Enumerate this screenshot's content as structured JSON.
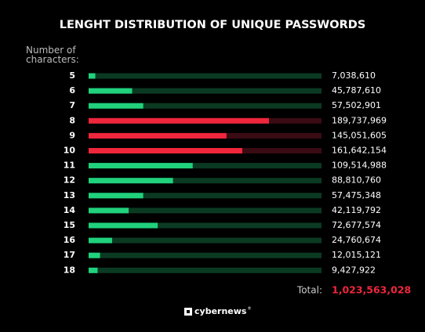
{
  "chart_data": {
    "type": "hbar",
    "title": "LENGHT DISTRIBUTION OF UNIQUE PASSWORDS",
    "axis_label": "Number of characters:",
    "categories": [
      "5",
      "6",
      "7",
      "8",
      "9",
      "10",
      "11",
      "12",
      "13",
      "14",
      "15",
      "16",
      "17",
      "18"
    ],
    "values": [
      7038610,
      45787610,
      57502901,
      189737969,
      145051605,
      161642154,
      109514988,
      88810760,
      57475348,
      42119792,
      72677574,
      24760674,
      12015121,
      9427922
    ],
    "value_labels": [
      "7,038,610",
      "45,787,610",
      "57,502,901",
      "189,737,969",
      "145,051,605",
      "161,642,154",
      "109,514,988",
      "88,810,760",
      "57,475,348",
      "42,119,792",
      "72,677,574",
      "24,760,674",
      "12,015,121",
      "9,427,922"
    ],
    "colors": [
      "#20d27c",
      "#20d27c",
      "#20d27c",
      "#f0263c",
      "#f0263c",
      "#f0263c",
      "#20d27c",
      "#20d27c",
      "#20d27c",
      "#20d27c",
      "#20d27c",
      "#20d27c",
      "#20d27c",
      "#20d27c"
    ],
    "track_colors": [
      "#0b3a22",
      "#0b3a22",
      "#0b3a22",
      "#3b0b14",
      "#3b0b14",
      "#3b0b14",
      "#0b3a22",
      "#0b3a22",
      "#0b3a22",
      "#0b3a22",
      "#0b3a22",
      "#0b3a22",
      "#0b3a22",
      "#0b3a22"
    ],
    "xlim": [
      0,
      245000000
    ],
    "total_label": "Total:",
    "total": {
      "value": 1023563028,
      "label": "1,023,563,028"
    },
    "total_color": "#f0263c",
    "logo": "cybernews",
    "logo_mark": "®"
  }
}
